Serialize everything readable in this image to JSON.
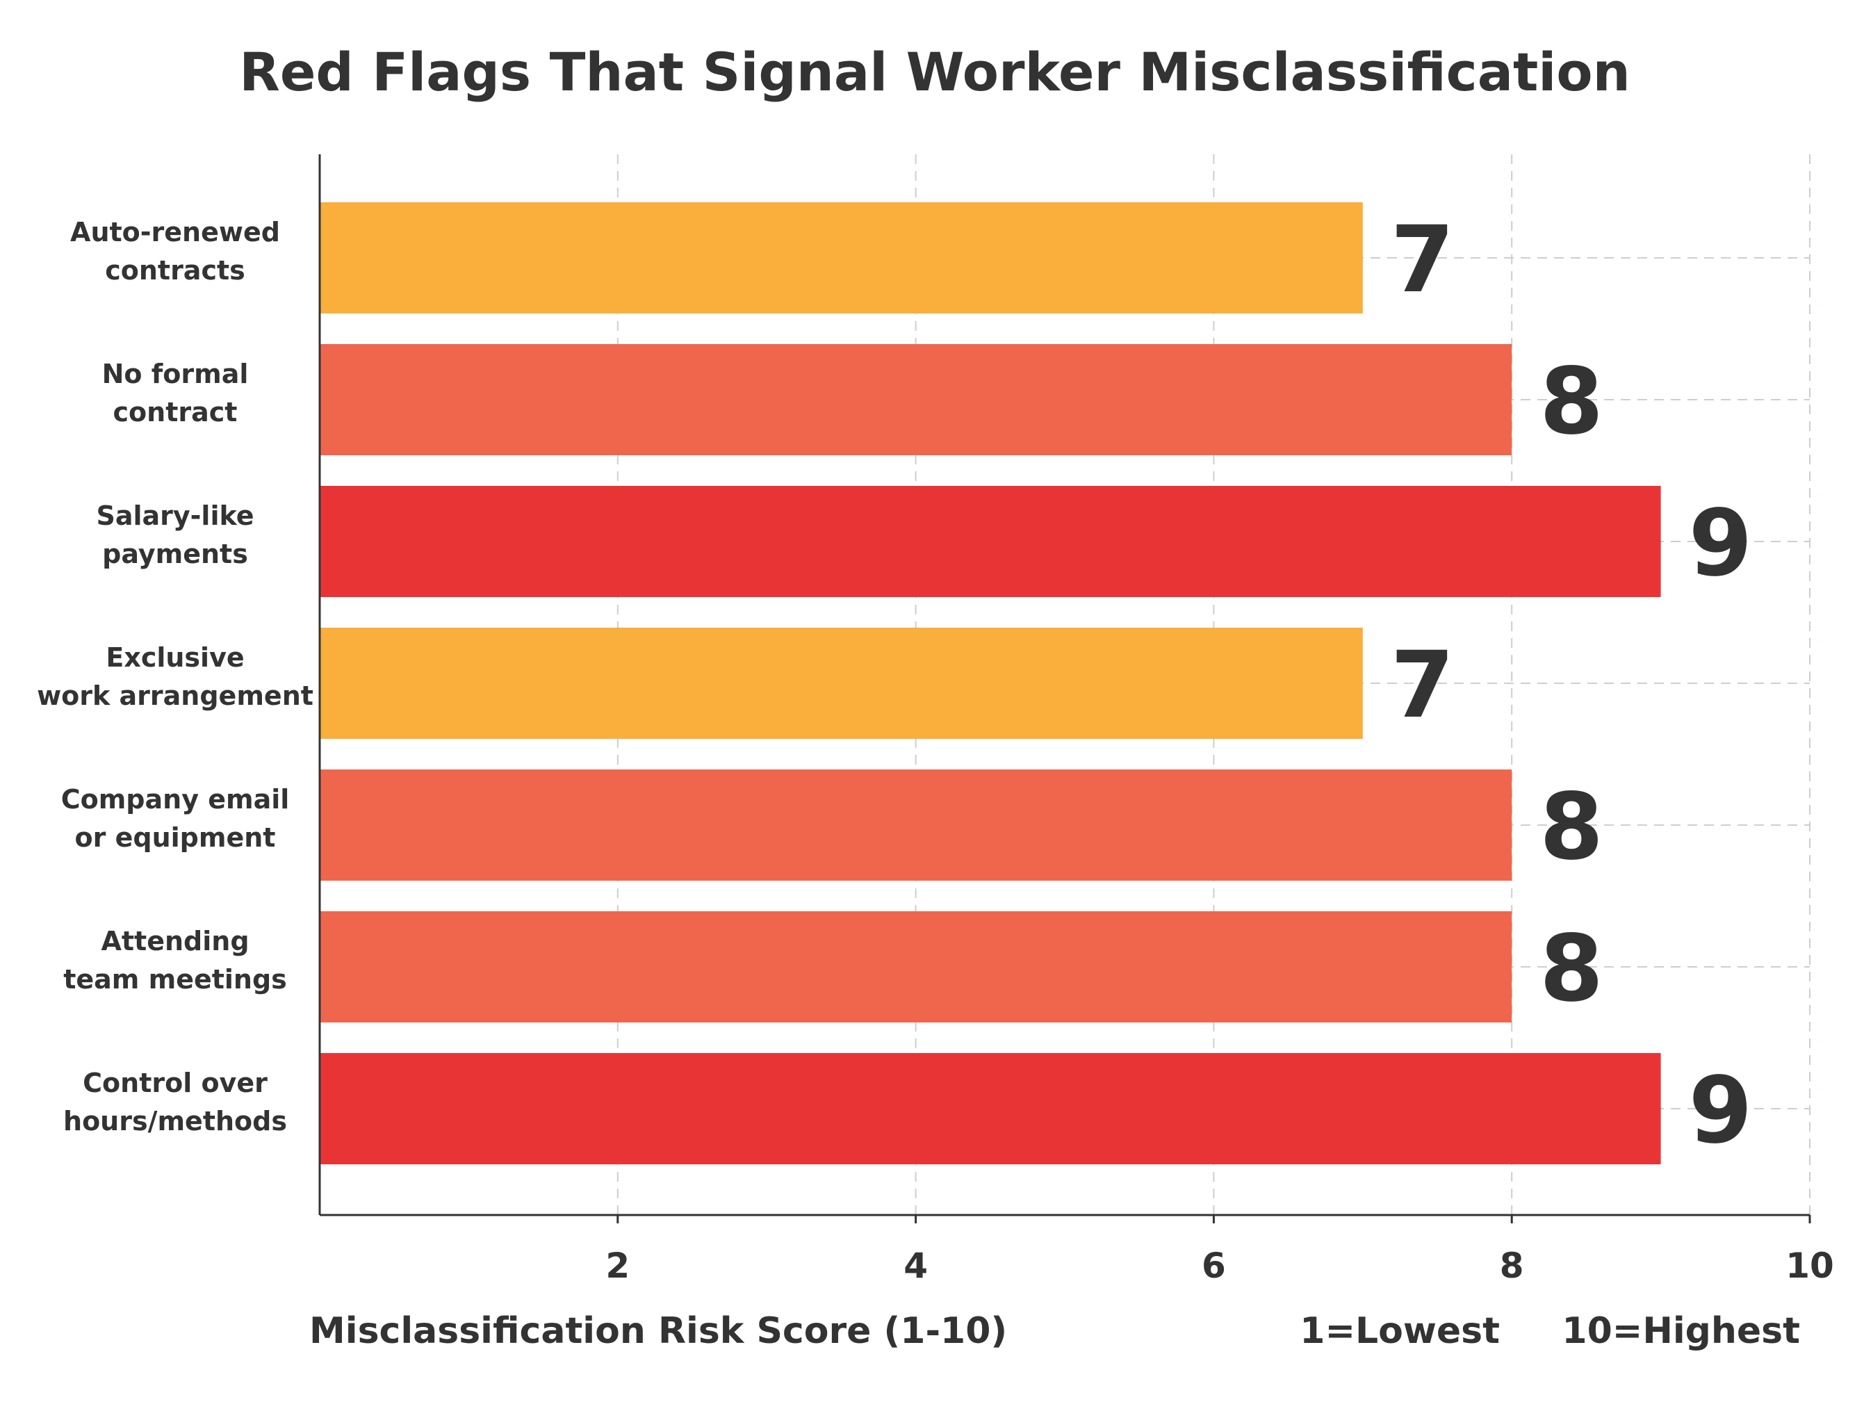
{
  "colors": {
    "low": "#FAAE3B",
    "medium": "#F0664C",
    "high": "#E93436",
    "text": "#333333",
    "grid": "#C9CFD5"
  },
  "chart_data": {
    "type": "bar",
    "orientation": "horizontal",
    "title": "Red Flags That Signal Worker Misclassification",
    "categories": [
      [
        "Auto-renewed",
        "contracts"
      ],
      [
        "No formal",
        "contract"
      ],
      [
        "Salary-like",
        "payments"
      ],
      [
        "Exclusive",
        "work arrangement"
      ],
      [
        "Company email",
        "or equipment"
      ],
      [
        "Attending",
        "team meetings"
      ],
      [
        "Control over",
        "hours/methods"
      ]
    ],
    "values": [
      7,
      8,
      9,
      7,
      8,
      8,
      9
    ],
    "value_labels": [
      "7",
      "8",
      "9",
      "7",
      "8",
      "8",
      "9"
    ],
    "bar_colors": [
      "#FAAE3B",
      "#F0664C",
      "#E93436",
      "#FAAE3B",
      "#F0664C",
      "#F0664C",
      "#E93436"
    ],
    "xlabel": "Misclassification Risk Score (1-10)",
    "ylabel": "",
    "xlim": [
      0,
      10
    ],
    "xticks": [
      2,
      4,
      6,
      8,
      10
    ],
    "xtick_labels": [
      "2",
      "4",
      "6",
      "8",
      "10"
    ],
    "grid": true,
    "scale_notes": [
      "1=Lowest",
      "10=Highest"
    ]
  }
}
